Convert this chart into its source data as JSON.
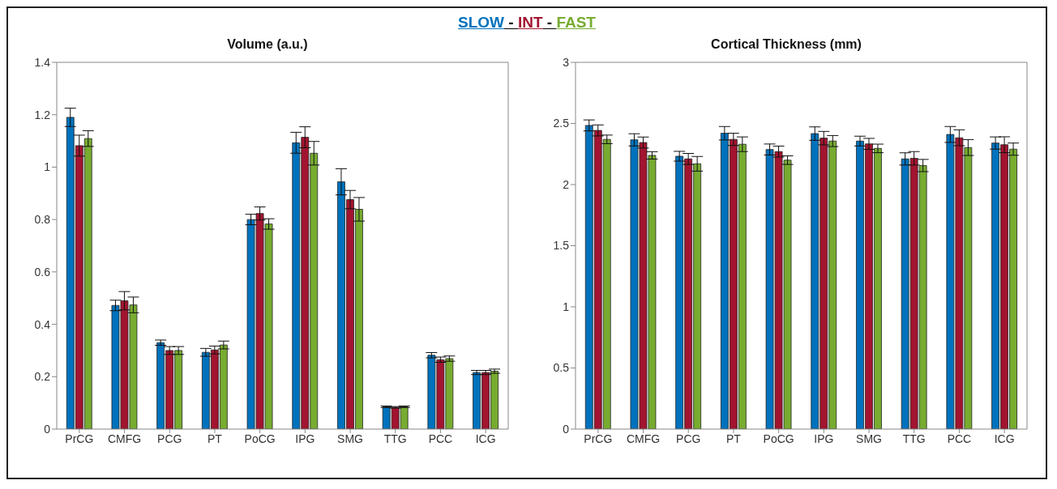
{
  "chart_data": [
    {
      "type": "bar",
      "title": "Volume (a.u.)",
      "legend": "top",
      "annotations": [
        "-",
        "-"
      ],
      "categories": [
        "PrCG",
        "CMFG",
        "PCG",
        "PT",
        "PoCG",
        "IPG",
        "SMG",
        "TTG",
        "PCC",
        "ICG"
      ],
      "ylim": [
        0,
        1.4
      ],
      "yticks": [
        0,
        0.2,
        0.4,
        0.6,
        0.8,
        1,
        1.2,
        1.4
      ],
      "series": [
        {
          "name": "SLOW",
          "color": "#0072bd",
          "values": [
            1.19,
            0.472,
            0.33,
            0.293,
            0.8,
            1.093,
            0.944,
            0.085,
            0.282,
            0.216
          ],
          "errors": [
            0.035,
            0.02,
            0.01,
            0.015,
            0.02,
            0.04,
            0.05,
            0.003,
            0.01,
            0.008
          ]
        },
        {
          "name": "INT",
          "color": "#a2142f",
          "values": [
            1.082,
            0.49,
            0.3,
            0.302,
            0.823,
            1.114,
            0.876,
            0.083,
            0.265,
            0.216
          ],
          "errors": [
            0.04,
            0.035,
            0.015,
            0.015,
            0.025,
            0.04,
            0.035,
            0.003,
            0.01,
            0.008
          ]
        },
        {
          "name": "FAST",
          "color": "#77ac30",
          "values": [
            1.109,
            0.474,
            0.3,
            0.321,
            0.783,
            1.053,
            0.839,
            0.085,
            0.269,
            0.221
          ],
          "errors": [
            0.03,
            0.03,
            0.015,
            0.015,
            0.02,
            0.045,
            0.045,
            0.003,
            0.01,
            0.008
          ]
        }
      ]
    },
    {
      "type": "bar",
      "title": "Cortical Thickness (mm)",
      "categories": [
        "PrCG",
        "CMFG",
        "PCG",
        "PT",
        "PoCG",
        "IPG",
        "SMG",
        "TTG",
        "PCC",
        "ICG"
      ],
      "ylim": [
        0,
        3
      ],
      "yticks": [
        0,
        0.5,
        1,
        1.5,
        2,
        2.5,
        3
      ],
      "series": [
        {
          "color": "#0072bd",
          "values": [
            2.484,
            2.366,
            2.232,
            2.42,
            2.287,
            2.417,
            2.356,
            2.21,
            2.41,
            2.34
          ],
          "errors": [
            0.045,
            0.05,
            0.04,
            0.055,
            0.045,
            0.055,
            0.04,
            0.05,
            0.065,
            0.05
          ]
        },
        {
          "color": "#a2142f",
          "values": [
            2.443,
            2.344,
            2.21,
            2.37,
            2.27,
            2.38,
            2.333,
            2.215,
            2.383,
            2.326
          ],
          "errors": [
            0.045,
            0.045,
            0.045,
            0.05,
            0.045,
            0.055,
            0.045,
            0.055,
            0.065,
            0.065
          ]
        },
        {
          "color": "#77ac30",
          "values": [
            2.37,
            2.239,
            2.17,
            2.33,
            2.2,
            2.356,
            2.296,
            2.156,
            2.303,
            2.29
          ],
          "errors": [
            0.035,
            0.03,
            0.06,
            0.06,
            0.035,
            0.045,
            0.035,
            0.05,
            0.065,
            0.05
          ]
        }
      ]
    }
  ]
}
